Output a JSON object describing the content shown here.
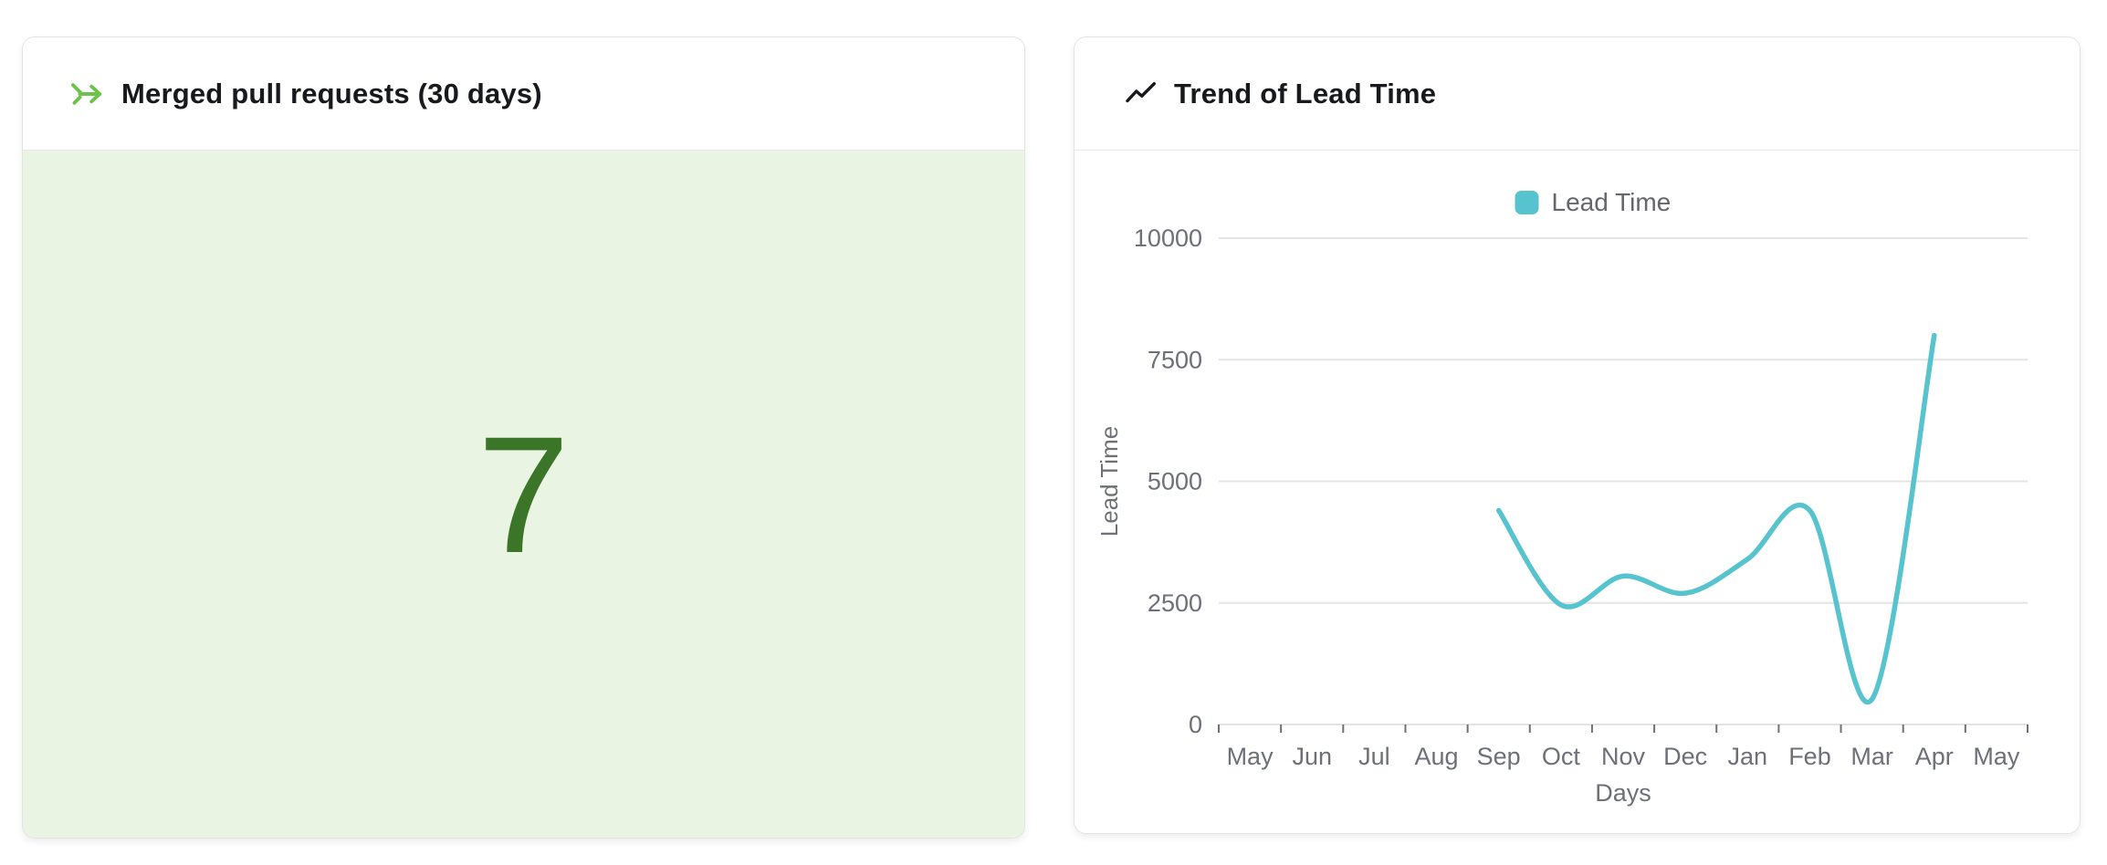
{
  "panels": {
    "merged_pr": {
      "icon": "merge-arrow-icon",
      "icon_color": "#6cc24a"
    },
    "lead_time": {
      "icon": "trend-up-icon",
      "icon_color": "#17191c"
    }
  },
  "chart_data": [
    {
      "type": "stat",
      "title": "Merged pull requests (30 days)",
      "value": "7",
      "value_color": "#3b7628",
      "bg_color": "#e9f4e3"
    },
    {
      "type": "line",
      "title": "Trend of Lead Time",
      "xlabel": "Days",
      "ylabel": "Lead Time",
      "legend_position": "top",
      "grid": true,
      "smooth": true,
      "categories": [
        "May",
        "Jun",
        "Jul",
        "Aug",
        "Sep",
        "Oct",
        "Nov",
        "Dec",
        "Jan",
        "Feb",
        "Mar",
        "Apr",
        "May"
      ],
      "series": [
        {
          "name": "Lead Time",
          "color": "#57c3ce",
          "values": [
            null,
            null,
            null,
            null,
            4400,
            2460,
            3050,
            2700,
            3400,
            4400,
            520,
            8000,
            null
          ]
        }
      ],
      "yticks": [
        0,
        2500,
        5000,
        7500,
        10000
      ],
      "ylim": [
        0,
        10000
      ],
      "axis_label_color": "#6e7079",
      "gridline_color": "#e4e4e4"
    }
  ]
}
